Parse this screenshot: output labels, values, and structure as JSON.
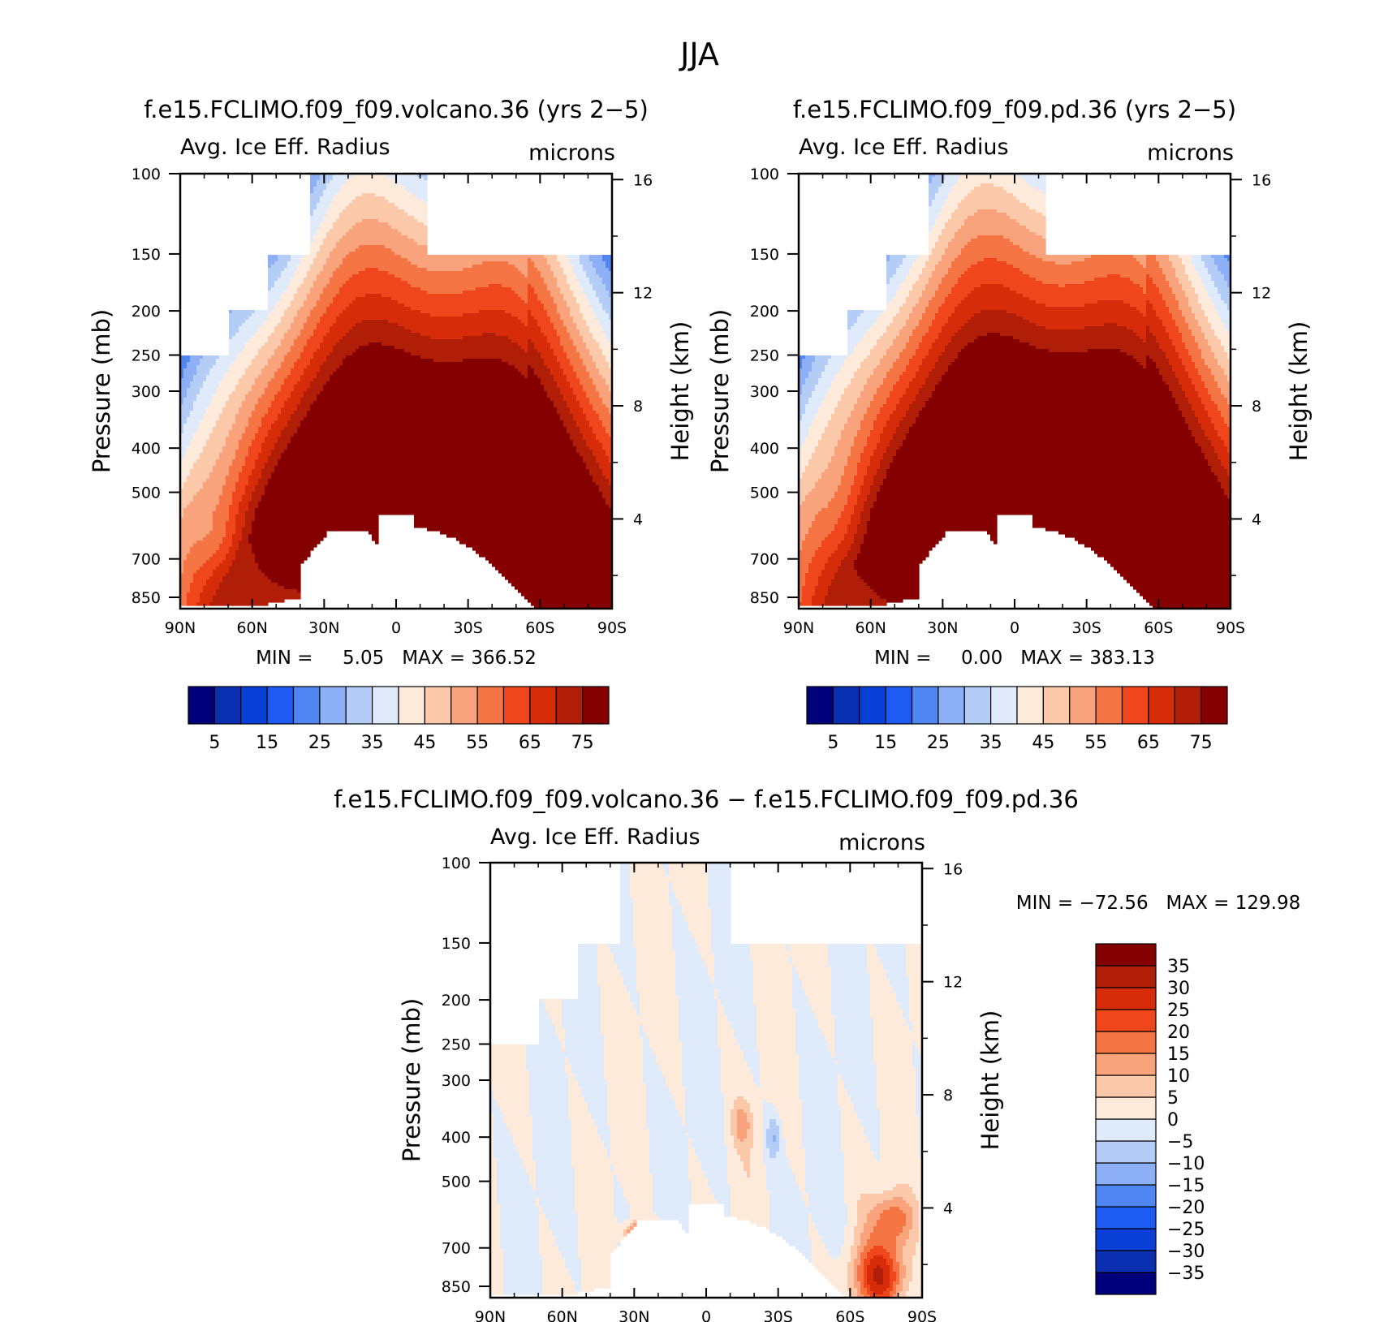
{
  "figure_title": "JJA",
  "colors": {
    "panel_colors": [
      "#00007a",
      "#0a2fb0",
      "#0b40d8",
      "#1e5bf2",
      "#4f86f2",
      "#8daff5",
      "#b4cdf7",
      "#dfeafb",
      "#fdeadb",
      "#fbc9a9",
      "#f9a37c",
      "#f57444",
      "#f0461c",
      "#d72c0a",
      "#b01e08",
      "#850000"
    ],
    "diff_colors": [
      "#00007a",
      "#0a2fb0",
      "#0b40d8",
      "#1e5bf2",
      "#4f86f2",
      "#8daff5",
      "#b4cdf7",
      "#dfeafb",
      "#fdeadb",
      "#fbc9a9",
      "#f9a37c",
      "#f57444",
      "#f0461c",
      "#d72c0a",
      "#b01e08",
      "#850000"
    ]
  },
  "chart_data": [
    {
      "type": "heatmap",
      "panel": "volcano",
      "title": "f.e15.FCLIMO.f09_f09.volcano.36 (yrs 2−5)",
      "left_label": "Avg. Ice Eff. Radius",
      "units": "microns",
      "ylabel": "Pressure (mb)",
      "ylabel_right": "Height (km)",
      "x_ticks": [
        "90N",
        "60N",
        "30N",
        "0",
        "30S",
        "60S",
        "90S"
      ],
      "y_ticks": [
        "100",
        "150",
        "200",
        "250",
        "300",
        "400",
        "500",
        "700",
        "850"
      ],
      "y2_ticks": [
        "16",
        "12",
        "8",
        "4"
      ],
      "xlim": [
        90,
        -90
      ],
      "ylim_mb": [
        100,
        900
      ],
      "min_text": "MIN =     5.05   MAX = 366.52",
      "min": 5.05,
      "max": 366.52,
      "colorbar_labels": [
        "5",
        "15",
        "25",
        "35",
        "45",
        "55",
        "65",
        "75"
      ],
      "contour_levels": [
        0,
        5,
        10,
        15,
        20,
        25,
        30,
        35,
        40,
        45,
        50,
        55,
        60,
        65,
        70,
        75
      ]
    },
    {
      "type": "heatmap",
      "panel": "pd",
      "title": "f.e15.FCLIMO.f09_f09.pd.36 (yrs 2−5)",
      "left_label": "Avg. Ice Eff. Radius",
      "units": "microns",
      "ylabel": "Pressure (mb)",
      "ylabel_right": "Height (km)",
      "x_ticks": [
        "90N",
        "60N",
        "30N",
        "0",
        "30S",
        "60S",
        "90S"
      ],
      "y_ticks": [
        "100",
        "150",
        "200",
        "250",
        "300",
        "400",
        "500",
        "700",
        "850"
      ],
      "y2_ticks": [
        "16",
        "12",
        "8",
        "4"
      ],
      "xlim": [
        90,
        -90
      ],
      "ylim_mb": [
        100,
        900
      ],
      "min_text": "MIN =     0.00   MAX = 383.13",
      "min": 0.0,
      "max": 383.13,
      "colorbar_labels": [
        "5",
        "15",
        "25",
        "35",
        "45",
        "55",
        "65",
        "75"
      ],
      "contour_levels": [
        0,
        5,
        10,
        15,
        20,
        25,
        30,
        35,
        40,
        45,
        50,
        55,
        60,
        65,
        70,
        75
      ]
    },
    {
      "type": "heatmap",
      "panel": "difference",
      "title": "f.e15.FCLIMO.f09_f09.volcano.36 − f.e15.FCLIMO.f09_f09.pd.36",
      "left_label": "Avg. Ice Eff. Radius",
      "units": "microns",
      "ylabel": "Pressure (mb)",
      "ylabel_right": "Height (km)",
      "x_ticks": [
        "90N",
        "60N",
        "30N",
        "0",
        "30S",
        "60S",
        "90S"
      ],
      "y_ticks": [
        "100",
        "150",
        "200",
        "250",
        "300",
        "400",
        "500",
        "700",
        "850"
      ],
      "y2_ticks": [
        "16",
        "12",
        "8",
        "4"
      ],
      "xlim": [
        90,
        -90
      ],
      "ylim_mb": [
        100,
        900
      ],
      "min_text": "MIN = −72.56   MAX = 129.98",
      "min": -72.56,
      "max": 129.98,
      "colorbar_labels": [
        "35",
        "30",
        "25",
        "20",
        "15",
        "10",
        "5",
        "0",
        "−5",
        "−10",
        "−15",
        "−20",
        "−25",
        "−30",
        "−35"
      ],
      "contour_levels": [
        -35,
        -30,
        -25,
        -20,
        -15,
        -10,
        -5,
        0,
        5,
        10,
        15,
        20,
        25,
        30,
        35
      ]
    }
  ]
}
